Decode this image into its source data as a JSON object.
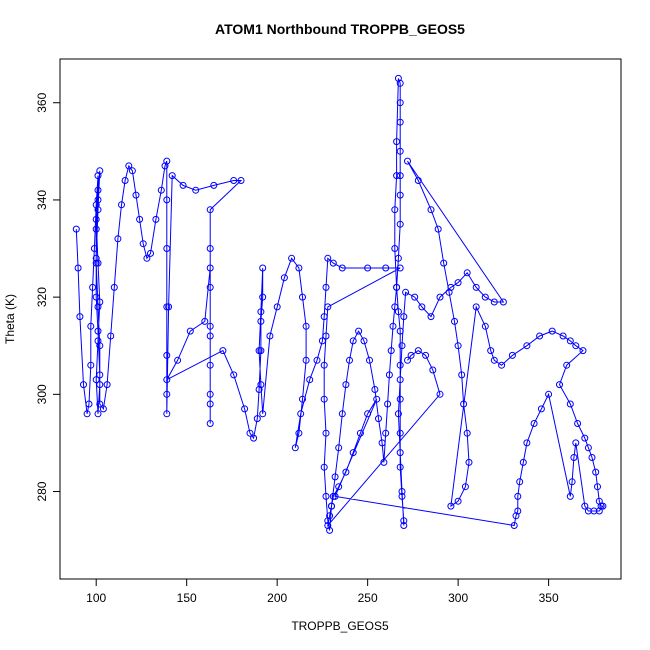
{
  "chart_data": {
    "type": "scatter",
    "title": "ATOM1 Northbound TROPPB_GEOS5",
    "xlabel": "TROPPB_GEOS5",
    "ylabel": "Theta (K)",
    "xlim": [
      80,
      390
    ],
    "ylim": [
      262,
      369
    ],
    "xticks": [
      100,
      150,
      200,
      250,
      300,
      350
    ],
    "yticks": [
      280,
      300,
      320,
      340,
      360
    ],
    "grid": false,
    "marker": "open-circle",
    "connected": true,
    "color": "#0000ff",
    "series": [
      {
        "points": [
          [
            89,
            334
          ],
          [
            90,
            326
          ],
          [
            91,
            316
          ],
          [
            93,
            302
          ],
          [
            95,
            296
          ],
          [
            96,
            298
          ],
          [
            97,
            306
          ],
          [
            97,
            314
          ],
          [
            98,
            322
          ],
          [
            99,
            330
          ],
          [
            100,
            339
          ],
          [
            101,
            345
          ],
          [
            101,
            340
          ],
          [
            100,
            334
          ],
          [
            100,
            327
          ],
          [
            101,
            318
          ],
          [
            102,
            310
          ],
          [
            102,
            302
          ],
          [
            101,
            296
          ],
          [
            100,
            303
          ],
          [
            101,
            311
          ],
          [
            102,
            319
          ],
          [
            101,
            327
          ],
          [
            100,
            336
          ],
          [
            101,
            342
          ],
          [
            102,
            346
          ],
          [
            101,
            338
          ],
          [
            100,
            328
          ],
          [
            100,
            320
          ],
          [
            101,
            313
          ],
          [
            102,
            304
          ],
          [
            102,
            298
          ],
          [
            104,
            297
          ],
          [
            106,
            302
          ],
          [
            108,
            312
          ],
          [
            110,
            322
          ],
          [
            112,
            332
          ],
          [
            114,
            339
          ],
          [
            116,
            344
          ],
          [
            118,
            347
          ],
          [
            120,
            346
          ],
          [
            122,
            341
          ],
          [
            124,
            336
          ],
          [
            126,
            331
          ],
          [
            128,
            328
          ],
          [
            130,
            329
          ],
          [
            133,
            336
          ],
          [
            136,
            342
          ],
          [
            138,
            347
          ],
          [
            139,
            348
          ],
          [
            139,
            340
          ],
          [
            139,
            330
          ],
          [
            139,
            318
          ],
          [
            139,
            308
          ],
          [
            139,
            300
          ],
          [
            139,
            296
          ],
          [
            140,
            318
          ],
          [
            142,
            345
          ],
          [
            148,
            343
          ],
          [
            155,
            342
          ],
          [
            165,
            343
          ],
          [
            176,
            344
          ],
          [
            180,
            344
          ],
          [
            163,
            338
          ],
          [
            163,
            330
          ],
          [
            163,
            322
          ],
          [
            163,
            314
          ],
          [
            163,
            306
          ],
          [
            163,
            298
          ],
          [
            163,
            294
          ],
          [
            163,
            300
          ],
          [
            163,
            312
          ],
          [
            163,
            326
          ],
          [
            160,
            315
          ],
          [
            152,
            313
          ],
          [
            145,
            307
          ],
          [
            139,
            303
          ],
          [
            170,
            309
          ],
          [
            176,
            304
          ],
          [
            182,
            297
          ],
          [
            185,
            292
          ],
          [
            187,
            291
          ],
          [
            189,
            295
          ],
          [
            190,
            301
          ],
          [
            191,
            309
          ],
          [
            191,
            315
          ],
          [
            192,
            320
          ],
          [
            192,
            326
          ],
          [
            191,
            317
          ],
          [
            190,
            309
          ],
          [
            191,
            302
          ],
          [
            192,
            296
          ],
          [
            196,
            312
          ],
          [
            200,
            318
          ],
          [
            204,
            324
          ],
          [
            208,
            328
          ],
          [
            212,
            326
          ],
          [
            214,
            320
          ],
          [
            216,
            314
          ],
          [
            216,
            307
          ],
          [
            214,
            299
          ],
          [
            212,
            292
          ],
          [
            210,
            289
          ],
          [
            213,
            296
          ],
          [
            218,
            303
          ],
          [
            222,
            307
          ],
          [
            225,
            311
          ],
          [
            226,
            316
          ],
          [
            227,
            322
          ],
          [
            228,
            328
          ],
          [
            231,
            327
          ],
          [
            236,
            326
          ],
          [
            250,
            326
          ],
          [
            260,
            326
          ],
          [
            268,
            326
          ],
          [
            228,
            318
          ],
          [
            227,
            312
          ],
          [
            226,
            306
          ],
          [
            226,
            299
          ],
          [
            227,
            292
          ],
          [
            226,
            285
          ],
          [
            227,
            279
          ],
          [
            228,
            274
          ],
          [
            229,
            272
          ],
          [
            230,
            277
          ],
          [
            232,
            283
          ],
          [
            234,
            289
          ],
          [
            236,
            296
          ],
          [
            238,
            302
          ],
          [
            240,
            307
          ],
          [
            242,
            311
          ],
          [
            245,
            313
          ],
          [
            248,
            311
          ],
          [
            251,
            307
          ],
          [
            254,
            301
          ],
          [
            256,
            295
          ],
          [
            258,
            290
          ],
          [
            259,
            286
          ],
          [
            260,
            292
          ],
          [
            261,
            298
          ],
          [
            262,
            304
          ],
          [
            263,
            309
          ],
          [
            264,
            314
          ],
          [
            265,
            318
          ],
          [
            266,
            322
          ],
          [
            267,
            328
          ],
          [
            268,
            335
          ],
          [
            268,
            341
          ],
          [
            268,
            345
          ],
          [
            268,
            350
          ],
          [
            268,
            356
          ],
          [
            268,
            360
          ],
          [
            268,
            364
          ],
          [
            267,
            365
          ],
          [
            266,
            352
          ],
          [
            266,
            345
          ],
          [
            265,
            338
          ],
          [
            265,
            330
          ],
          [
            266,
            322
          ],
          [
            267,
            317
          ],
          [
            268,
            313
          ],
          [
            268,
            306
          ],
          [
            268,
            299
          ],
          [
            268,
            292
          ],
          [
            268,
            285
          ],
          [
            269,
            279
          ],
          [
            270,
            274
          ],
          [
            270,
            273
          ],
          [
            269,
            280
          ],
          [
            268,
            288
          ],
          [
            267,
            296
          ],
          [
            268,
            303
          ],
          [
            269,
            310
          ],
          [
            270,
            316
          ],
          [
            271,
            321
          ],
          [
            276,
            320
          ],
          [
            280,
            318
          ],
          [
            285,
            316
          ],
          [
            290,
            320
          ],
          [
            296,
            322
          ],
          [
            300,
            323
          ],
          [
            305,
            325
          ],
          [
            310,
            322
          ],
          [
            315,
            320
          ],
          [
            320,
            319
          ],
          [
            325,
            319
          ],
          [
            272,
            348
          ],
          [
            278,
            344
          ],
          [
            285,
            338
          ],
          [
            289,
            334
          ],
          [
            292,
            327
          ],
          [
            295,
            321
          ],
          [
            298,
            315
          ],
          [
            300,
            310
          ],
          [
            302,
            304
          ],
          [
            303,
            298
          ],
          [
            305,
            292
          ],
          [
            306,
            286
          ],
          [
            304,
            281
          ],
          [
            300,
            278
          ],
          [
            296,
            277
          ],
          [
            310,
            318
          ],
          [
            315,
            314
          ],
          [
            318,
            309
          ],
          [
            320,
            307
          ],
          [
            324,
            306
          ],
          [
            330,
            308
          ],
          [
            338,
            310
          ],
          [
            345,
            312
          ],
          [
            352,
            313
          ],
          [
            358,
            312
          ],
          [
            362,
            311
          ],
          [
            365,
            310
          ],
          [
            369,
            309
          ],
          [
            360,
            306
          ],
          [
            356,
            302
          ],
          [
            362,
            298
          ],
          [
            366,
            294
          ],
          [
            370,
            291
          ],
          [
            372,
            289
          ],
          [
            374,
            287
          ],
          [
            376,
            284
          ],
          [
            377,
            281
          ],
          [
            378,
            278
          ],
          [
            379,
            277
          ],
          [
            380,
            277
          ],
          [
            378,
            276
          ],
          [
            375,
            276
          ],
          [
            372,
            276
          ],
          [
            370,
            277
          ],
          [
            365,
            290
          ],
          [
            364,
            287
          ],
          [
            363,
            282
          ],
          [
            362,
            279
          ],
          [
            350,
            300
          ],
          [
            346,
            297
          ],
          [
            342,
            294
          ],
          [
            338,
            290
          ],
          [
            336,
            286
          ],
          [
            334,
            282
          ],
          [
            333,
            279
          ],
          [
            333,
            276
          ],
          [
            332,
            275
          ],
          [
            331,
            273
          ],
          [
            232,
            279
          ],
          [
            255,
            299
          ],
          [
            250,
            296
          ],
          [
            246,
            292
          ],
          [
            242,
            288
          ],
          [
            238,
            284
          ],
          [
            234,
            281
          ],
          [
            231,
            279
          ],
          [
            230,
            277
          ],
          [
            229,
            275
          ],
          [
            228,
            273
          ],
          [
            290,
            300
          ],
          [
            286,
            305
          ],
          [
            282,
            308
          ],
          [
            278,
            309
          ],
          [
            274,
            308
          ],
          [
            272,
            307
          ]
        ]
      }
    ]
  }
}
